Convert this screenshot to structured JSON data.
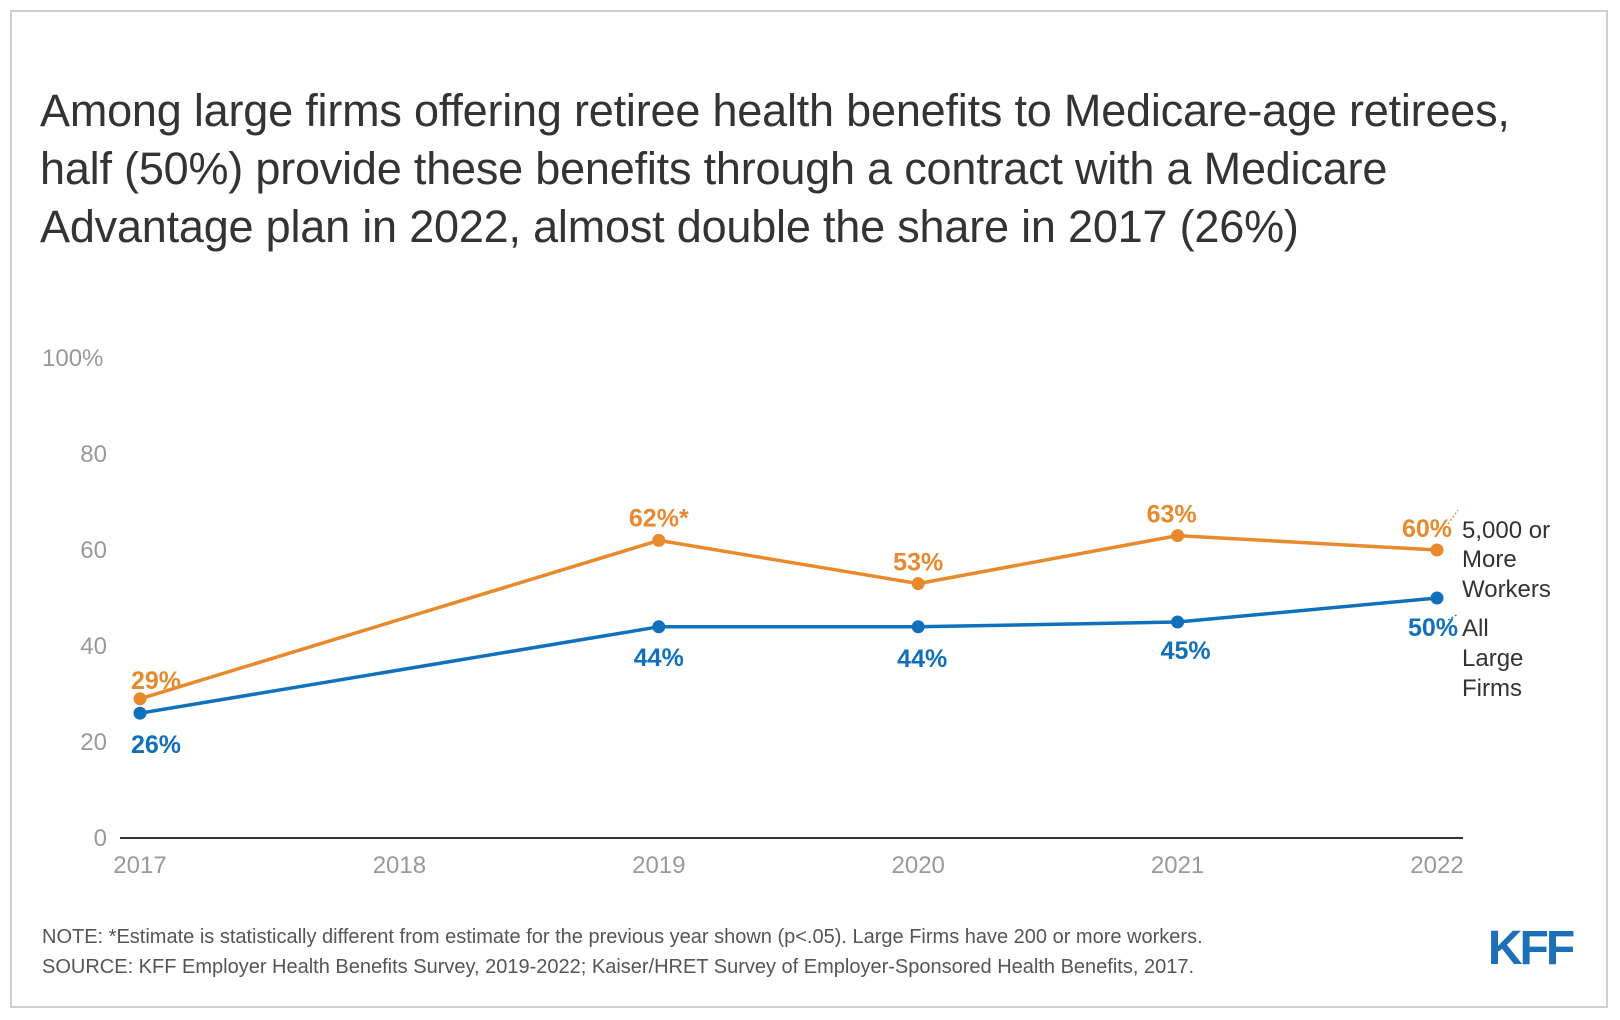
{
  "title": "Among large firms offering retiree health benefits to Medicare-age retirees, half (50%) provide these benefits through a contract with a Medicare Advantage plan in 2022, almost double the share in 2017 (26%)",
  "note": "NOTE: *Estimate is statistically different from estimate for the previous year shown (p<.05). Large Firms have 200 or more workers.",
  "source": "SOURCE: KFF Employer Health Benefits Survey, 2019-2022; Kaiser/HRET Survey of Employer-Sponsored Health Benefits, 2017.",
  "logo_text": "KFF",
  "colors": {
    "orange": "#E8892B",
    "blue": "#1170BC",
    "logo": "#1D6FB8",
    "tick": "#999999",
    "axis": "#333333"
  },
  "chart_data": {
    "type": "line",
    "title": "",
    "xlabel": "",
    "ylabel": "",
    "x": [
      "2017",
      "2018",
      "2019",
      "2020",
      "2021",
      "2022"
    ],
    "ylim": [
      0,
      100
    ],
    "yticks": [
      "0",
      "20",
      "40",
      "60",
      "80",
      "100%"
    ],
    "grid": false,
    "series": [
      {
        "name": "5,000 or More Workers",
        "name_lines": [
          "5,000 or",
          "More",
          "Workers"
        ],
        "color": "#E8892B",
        "points": [
          {
            "x": "2017",
            "y": 29,
            "label": "29%"
          },
          {
            "x": "2019",
            "y": 62,
            "label": "62%*"
          },
          {
            "x": "2020",
            "y": 53,
            "label": "53%"
          },
          {
            "x": "2021",
            "y": 63,
            "label": "63%"
          },
          {
            "x": "2022",
            "y": 60,
            "label": "60%"
          }
        ]
      },
      {
        "name": "All Large Firms",
        "name_lines": [
          "All",
          "Large",
          "Firms"
        ],
        "color": "#1170BC",
        "points": [
          {
            "x": "2017",
            "y": 26,
            "label": "26%"
          },
          {
            "x": "2019",
            "y": 44,
            "label": "44%"
          },
          {
            "x": "2020",
            "y": 44,
            "label": "44%"
          },
          {
            "x": "2021",
            "y": 45,
            "label": "45%"
          },
          {
            "x": "2022",
            "y": 50,
            "label": "50%"
          }
        ]
      }
    ]
  }
}
